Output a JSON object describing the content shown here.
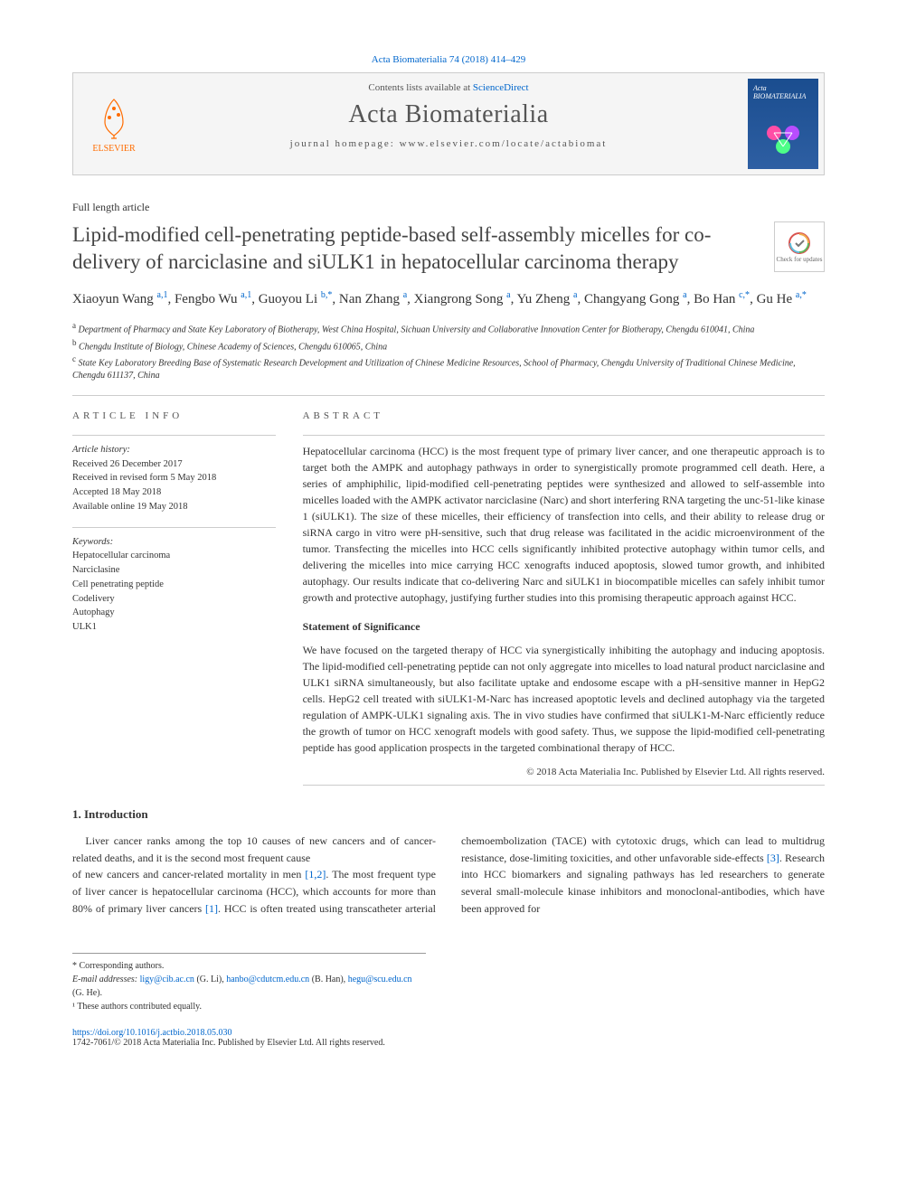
{
  "citation": "Acta Biomaterialia 74 (2018) 414–429",
  "banner": {
    "publisher": "ELSEVIER",
    "contents_prefix": "Contents lists available at ",
    "contents_link": "ScienceDirect",
    "journal_name": "Acta Biomaterialia",
    "homepage_label": "journal homepage: ",
    "homepage_url": "www.elsevier.com/locate/actabiomat",
    "cover_text": "Acta BIOMATERIALIA"
  },
  "article_type": "Full length article",
  "title": "Lipid-modified cell-penetrating peptide-based self-assembly micelles for co-delivery of narciclasine and siULK1 in hepatocellular carcinoma therapy",
  "check_updates": "Check for updates",
  "authors_html": "Xiaoyun Wang <sup>a,1</sup>, Fengbo Wu <sup>a,1</sup>, Guoyou Li <sup>b,*</sup>, Nan Zhang <sup>a</sup>, Xiangrong Song <sup>a</sup>, Yu Zheng <sup>a</sup>, Changyang Gong <sup>a</sup>, Bo Han <sup>c,*</sup>, Gu He <sup>a,*</sup>",
  "affiliations": {
    "a": "Department of Pharmacy and State Key Laboratory of Biotherapy, West China Hospital, Sichuan University and Collaborative Innovation Center for Biotherapy, Chengdu 610041, China",
    "b": "Chengdu Institute of Biology, Chinese Academy of Sciences, Chengdu 610065, China",
    "c": "State Key Laboratory Breeding Base of Systematic Research Development and Utilization of Chinese Medicine Resources, School of Pharmacy, Chengdu University of Traditional Chinese Medicine, Chengdu 611137, China"
  },
  "article_info": {
    "heading": "ARTICLE INFO",
    "history_label": "Article history:",
    "history": "Received 26 December 2017\nReceived in revised form 5 May 2018\nAccepted 18 May 2018\nAvailable online 19 May 2018",
    "keywords_label": "Keywords:",
    "keywords": "Hepatocellular carcinoma\nNarciclasine\nCell penetrating peptide\nCodelivery\nAutophagy\nULK1"
  },
  "abstract": {
    "heading": "ABSTRACT",
    "body": "Hepatocellular carcinoma (HCC) is the most frequent type of primary liver cancer, and one therapeutic approach is to target both the AMPK and autophagy pathways in order to synergistically promote programmed cell death. Here, a series of amphiphilic, lipid-modified cell-penetrating peptides were synthesized and allowed to self-assemble into micelles loaded with the AMPK activator narciclasine (Narc) and short interfering RNA targeting the unc-51-like kinase 1 (siULK1). The size of these micelles, their efficiency of transfection into cells, and their ability to release drug or siRNA cargo in vitro were pH-sensitive, such that drug release was facilitated in the acidic microenvironment of the tumor. Transfecting the micelles into HCC cells significantly inhibited protective autophagy within tumor cells, and delivering the micelles into mice carrying HCC xenografts induced apoptosis, slowed tumor growth, and inhibited autophagy. Our results indicate that co-delivering Narc and siULK1 in biocompatible micelles can safely inhibit tumor growth and protective autophagy, justifying further studies into this promising therapeutic approach against HCC.",
    "statement_heading": "Statement of Significance",
    "statement_body": "We have focused on the targeted therapy of HCC via synergistically inhibiting the autophagy and inducing apoptosis. The lipid-modified cell-penetrating peptide can not only aggregate into micelles to load natural product narciclasine and ULK1 siRNA simultaneously, but also facilitate uptake and endosome escape with a pH-sensitive manner in HepG2 cells. HepG2 cell treated with siULK1-M-Narc has increased apoptotic levels and declined autophagy via the targeted regulation of AMPK-ULK1 signaling axis. The in vivo studies have confirmed that siULK1-M-Narc efficiently reduce the growth of tumor on HCC xenograft models with good safety. Thus, we suppose the lipid-modified cell-penetrating peptide has good application prospects in the targeted combinational therapy of HCC.",
    "copyright": "© 2018 Acta Materialia Inc. Published by Elsevier Ltd. All rights reserved."
  },
  "intro": {
    "heading": "1. Introduction",
    "p1": "Liver cancer ranks among the top 10 causes of new cancers and of cancer-related deaths, and it is the second most frequent cause",
    "p2_pre": "of new cancers and cancer-related mortality in men ",
    "ref12": "[1,2]",
    "p2_mid1": ". The most frequent type of liver cancer is hepatocellular carcinoma (HCC), which accounts for more than 80% of primary liver cancers ",
    "ref1": "[1]",
    "p2_mid2": ". HCC is often treated using transcatheter arterial chemoembolization (TACE) with cytotoxic drugs, which can lead to multidrug resistance, dose-limiting toxicities, and other unfavorable side-effects ",
    "ref3": "[3]",
    "p2_end": ". Research into HCC biomarkers and signaling pathways has led researchers to generate several small-molecule kinase inhibitors and monoclonal-antibodies, which have been approved for"
  },
  "footnotes": {
    "corresponding": "* Corresponding authors.",
    "email_label": "E-mail addresses:",
    "emails": [
      {
        "addr": "ligy@cib.ac.cn",
        "name": "(G. Li)"
      },
      {
        "addr": "hanbo@cdutcm.edu.cn",
        "name": "(B. Han)"
      },
      {
        "addr": "hegu@scu.edu.cn",
        "name": "(G. He)"
      }
    ],
    "equal": "¹ These authors contributed equally."
  },
  "doi": "https://doi.org/10.1016/j.actbio.2018.05.030",
  "issn_line": "1742-7061/© 2018 Acta Materialia Inc. Published by Elsevier Ltd. All rights reserved."
}
